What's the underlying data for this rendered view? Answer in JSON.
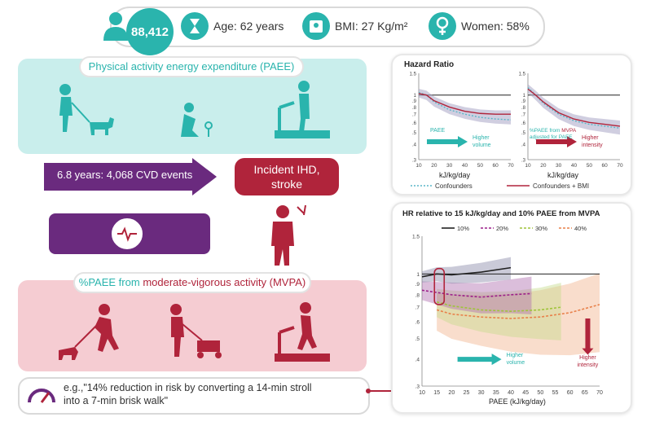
{
  "header": {
    "participants": "88,412",
    "age": "Age: 62 years",
    "bmi": "BMI: 27 Kg/m²",
    "women": "Women: 58%"
  },
  "paee_panel": {
    "title": "Physical activity energy expenditure (PAEE)"
  },
  "arrow": {
    "label": "6.8 years: 4,068 CVD events"
  },
  "outcome": {
    "label_line1": "Incident IHD,",
    "label_line2": "stroke"
  },
  "mvpa_panel": {
    "title_part1": "%PAEE from ",
    "title_part2": "moderate-vigorous activity (MVPA)"
  },
  "quote": {
    "line1": "e.g.,\"14% reduction in risk by converting a 14-min stroll",
    "line2": "into a 7-min brisk walk\""
  },
  "colors": {
    "teal": "#2ab4ad",
    "crimson": "#b0243b",
    "purple": "#6a2a7e"
  },
  "chart_data": [
    {
      "type": "line",
      "title": "Hazard Ratio",
      "panels": [
        {
          "id": "left",
          "annotation": "PAEE",
          "arrow_label_line1": "Higher",
          "arrow_label_line2": "volume",
          "x": [
            10,
            15,
            20,
            30,
            40,
            50,
            60,
            70
          ],
          "series": [
            {
              "name": "Confounders",
              "style": "dotted",
              "values": [
                1.05,
                1.0,
                0.88,
                0.76,
                0.7,
                0.66,
                0.64,
                0.63
              ]
            },
            {
              "name": "Confounders + BMI",
              "style": "solid",
              "values": [
                1.03,
                1.0,
                0.9,
                0.8,
                0.74,
                0.71,
                0.7,
                0.7
              ]
            }
          ]
        },
        {
          "id": "right",
          "annotation_line1_part1": "%PAEE from ",
          "annotation_line1_part2": "MVPA",
          "annotation_line2": "adjusted for PAEE",
          "arrow_label_line1": "Higher",
          "arrow_label_line2": "intensity",
          "x": [
            10,
            15,
            20,
            30,
            40,
            50,
            60,
            70
          ],
          "series": [
            {
              "name": "Confounders",
              "style": "dotted",
              "values": [
                1.15,
                1.0,
                0.86,
                0.7,
                0.62,
                0.58,
                0.56,
                0.54
              ]
            },
            {
              "name": "Confounders + BMI",
              "style": "solid",
              "values": [
                1.12,
                1.0,
                0.88,
                0.72,
                0.64,
                0.6,
                0.58,
                0.56
              ]
            }
          ]
        }
      ],
      "xlabel": "kJ/kg/day",
      "xlim": [
        10,
        70
      ],
      "x_ticks": [
        "10",
        "20",
        "30",
        "40",
        "50",
        "60",
        "70"
      ],
      "y_ticks": [
        "1.5",
        "1",
        ".9",
        ".8",
        ".7",
        ".6",
        ".5",
        ".4",
        ".3"
      ],
      "ylim": [
        0.3,
        1.5
      ],
      "y_scale": "log"
    },
    {
      "type": "line",
      "title": "HR relative to 15 kJ/kg/day and 10% PAEE from MVPA",
      "legend": [
        "10%",
        "20%",
        "30%",
        "40%"
      ],
      "series_colors": [
        "#222222",
        "#9b1f8a",
        "#9fc43a",
        "#e8804a"
      ],
      "x_10": [
        10,
        15,
        20,
        30,
        40
      ],
      "values_10": [
        0.97,
        1.0,
        0.99,
        1.02,
        1.07
      ],
      "x_20": [
        10,
        15,
        20,
        30,
        40,
        47
      ],
      "values_20": [
        0.84,
        0.82,
        0.8,
        0.78,
        0.8,
        0.81
      ],
      "x_30": [
        15,
        20,
        30,
        40,
        50,
        57
      ],
      "values_30": [
        0.74,
        0.71,
        0.68,
        0.67,
        0.68,
        0.7
      ],
      "x_40": [
        15,
        20,
        30,
        40,
        50,
        60,
        70
      ],
      "values_40": [
        0.68,
        0.65,
        0.63,
        0.62,
        0.63,
        0.66,
        0.72
      ],
      "xlabel": "PAEE (kJ/kg/day)",
      "xlim": [
        10,
        70
      ],
      "x_ticks": [
        "10",
        "15",
        "20",
        "25",
        "30",
        "35",
        "40",
        "45",
        "50",
        "55",
        "60",
        "65",
        "70"
      ],
      "y_ticks": [
        "1.5",
        "1",
        ".9",
        ".8",
        ".7",
        ".6",
        ".5",
        ".4",
        ".3"
      ],
      "ylim": [
        0.3,
        1.5
      ],
      "y_scale": "log",
      "arrow_volume_line1": "Higher",
      "arrow_volume_line2": "volume",
      "arrow_intensity_line1": "Higher",
      "arrow_intensity_line2": "intensity"
    }
  ]
}
